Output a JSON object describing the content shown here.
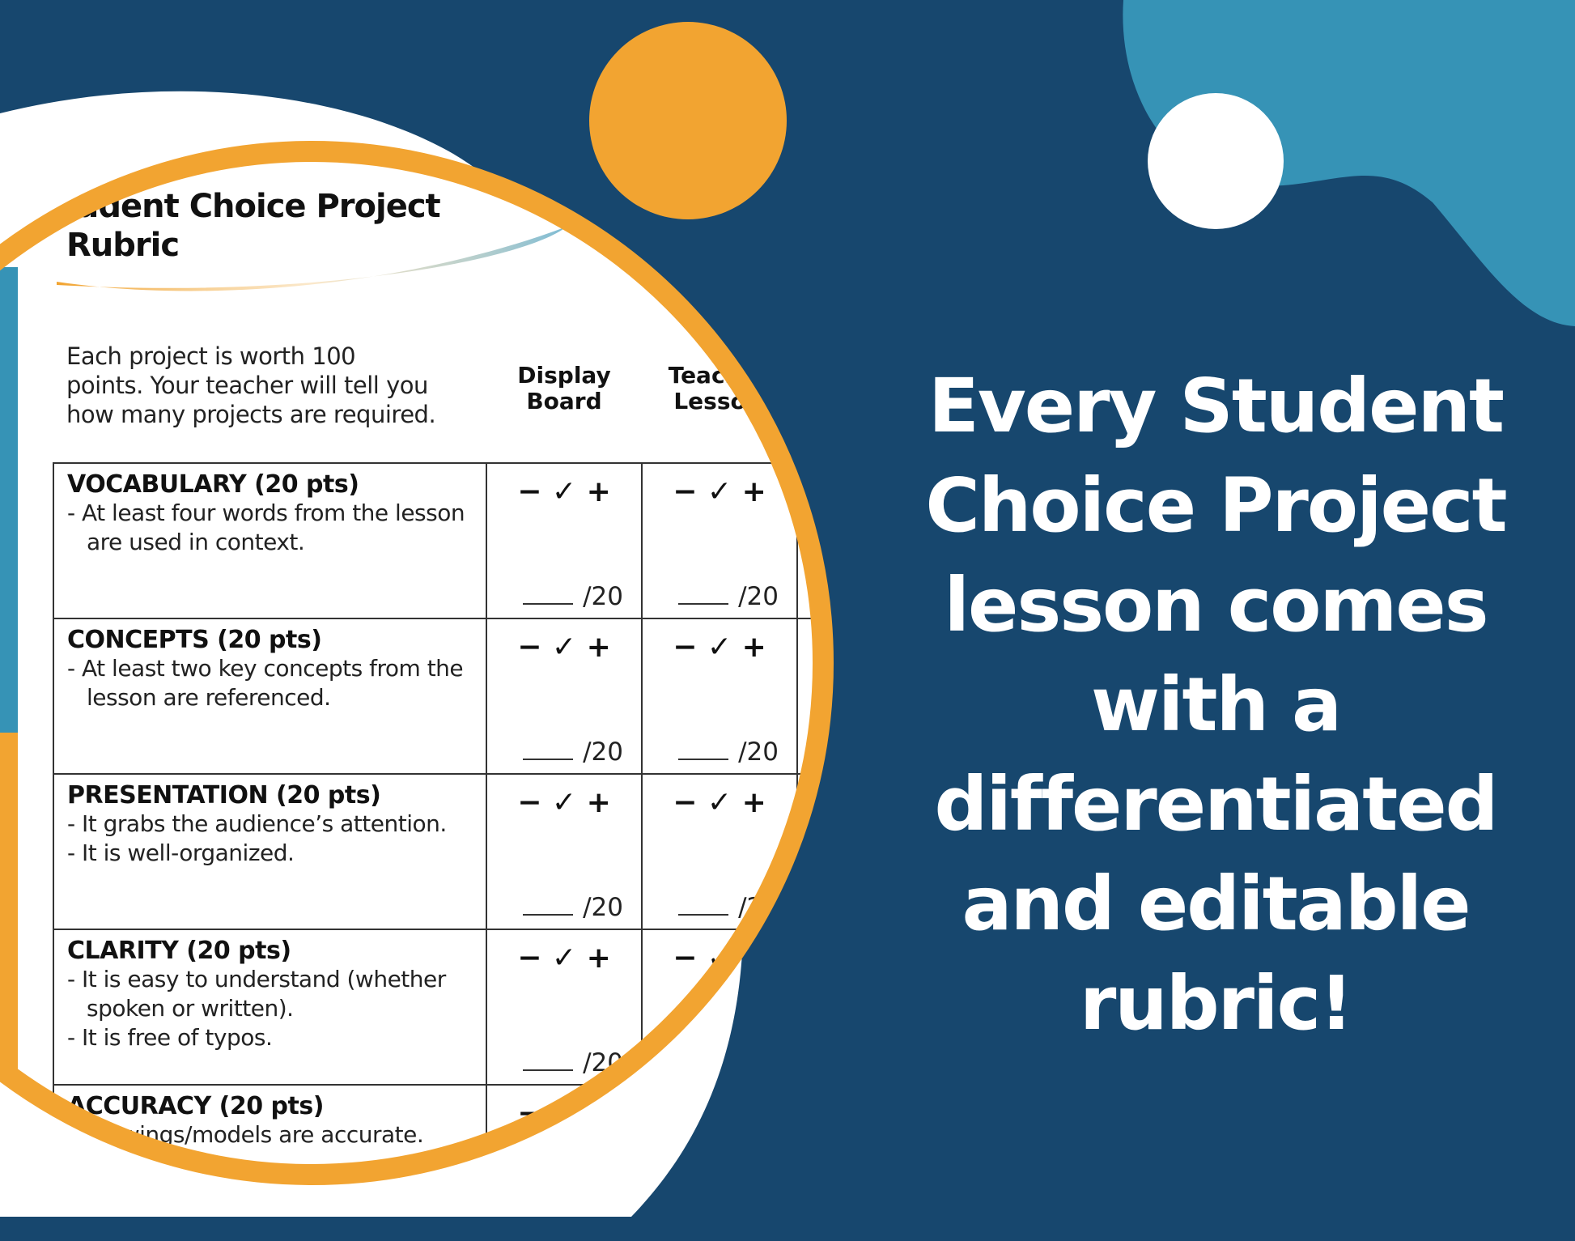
{
  "colors": {
    "navy": "#17476e",
    "teal": "#3693b6",
    "orange": "#f2a431",
    "white": "#ffffff"
  },
  "document": {
    "title_line1": "Student Choice Project",
    "title_line2": "Rubric",
    "intro": [
      "Each project is worth 100",
      "points. Your teacher will tell you",
      "how many projects are required."
    ],
    "columns": [
      {
        "line1": "Display",
        "line2": "Board"
      },
      {
        "line1": "Teacher",
        "line2": "Lesson"
      }
    ],
    "marks": "− ✓ +",
    "points": "/20",
    "rows": [
      {
        "header": "VOCABULARY (20 pts)",
        "bullets": [
          "- At least four words from the lesson are used in context."
        ]
      },
      {
        "header": "CONCEPTS (20 pts)",
        "bullets": [
          "- At least two key concepts from the lesson are referenced."
        ]
      },
      {
        "header": "PRESENTATION (20 pts)",
        "bullets": [
          "- It grabs the audience’s attention.",
          "- It is well-organized."
        ]
      },
      {
        "header": "CLARITY (20 pts)",
        "bullets": [
          "- It is easy to understand (whether spoken or written).",
          "- It is free of typos."
        ]
      },
      {
        "header": "ACCURACY (20 pts)",
        "bullets": [
          "- Drawings/models are accurate."
        ]
      }
    ]
  },
  "headline": [
    "Every Student",
    "Choice Project",
    "lesson comes",
    "with a",
    "differentiated",
    "and editable",
    "rubric!"
  ]
}
